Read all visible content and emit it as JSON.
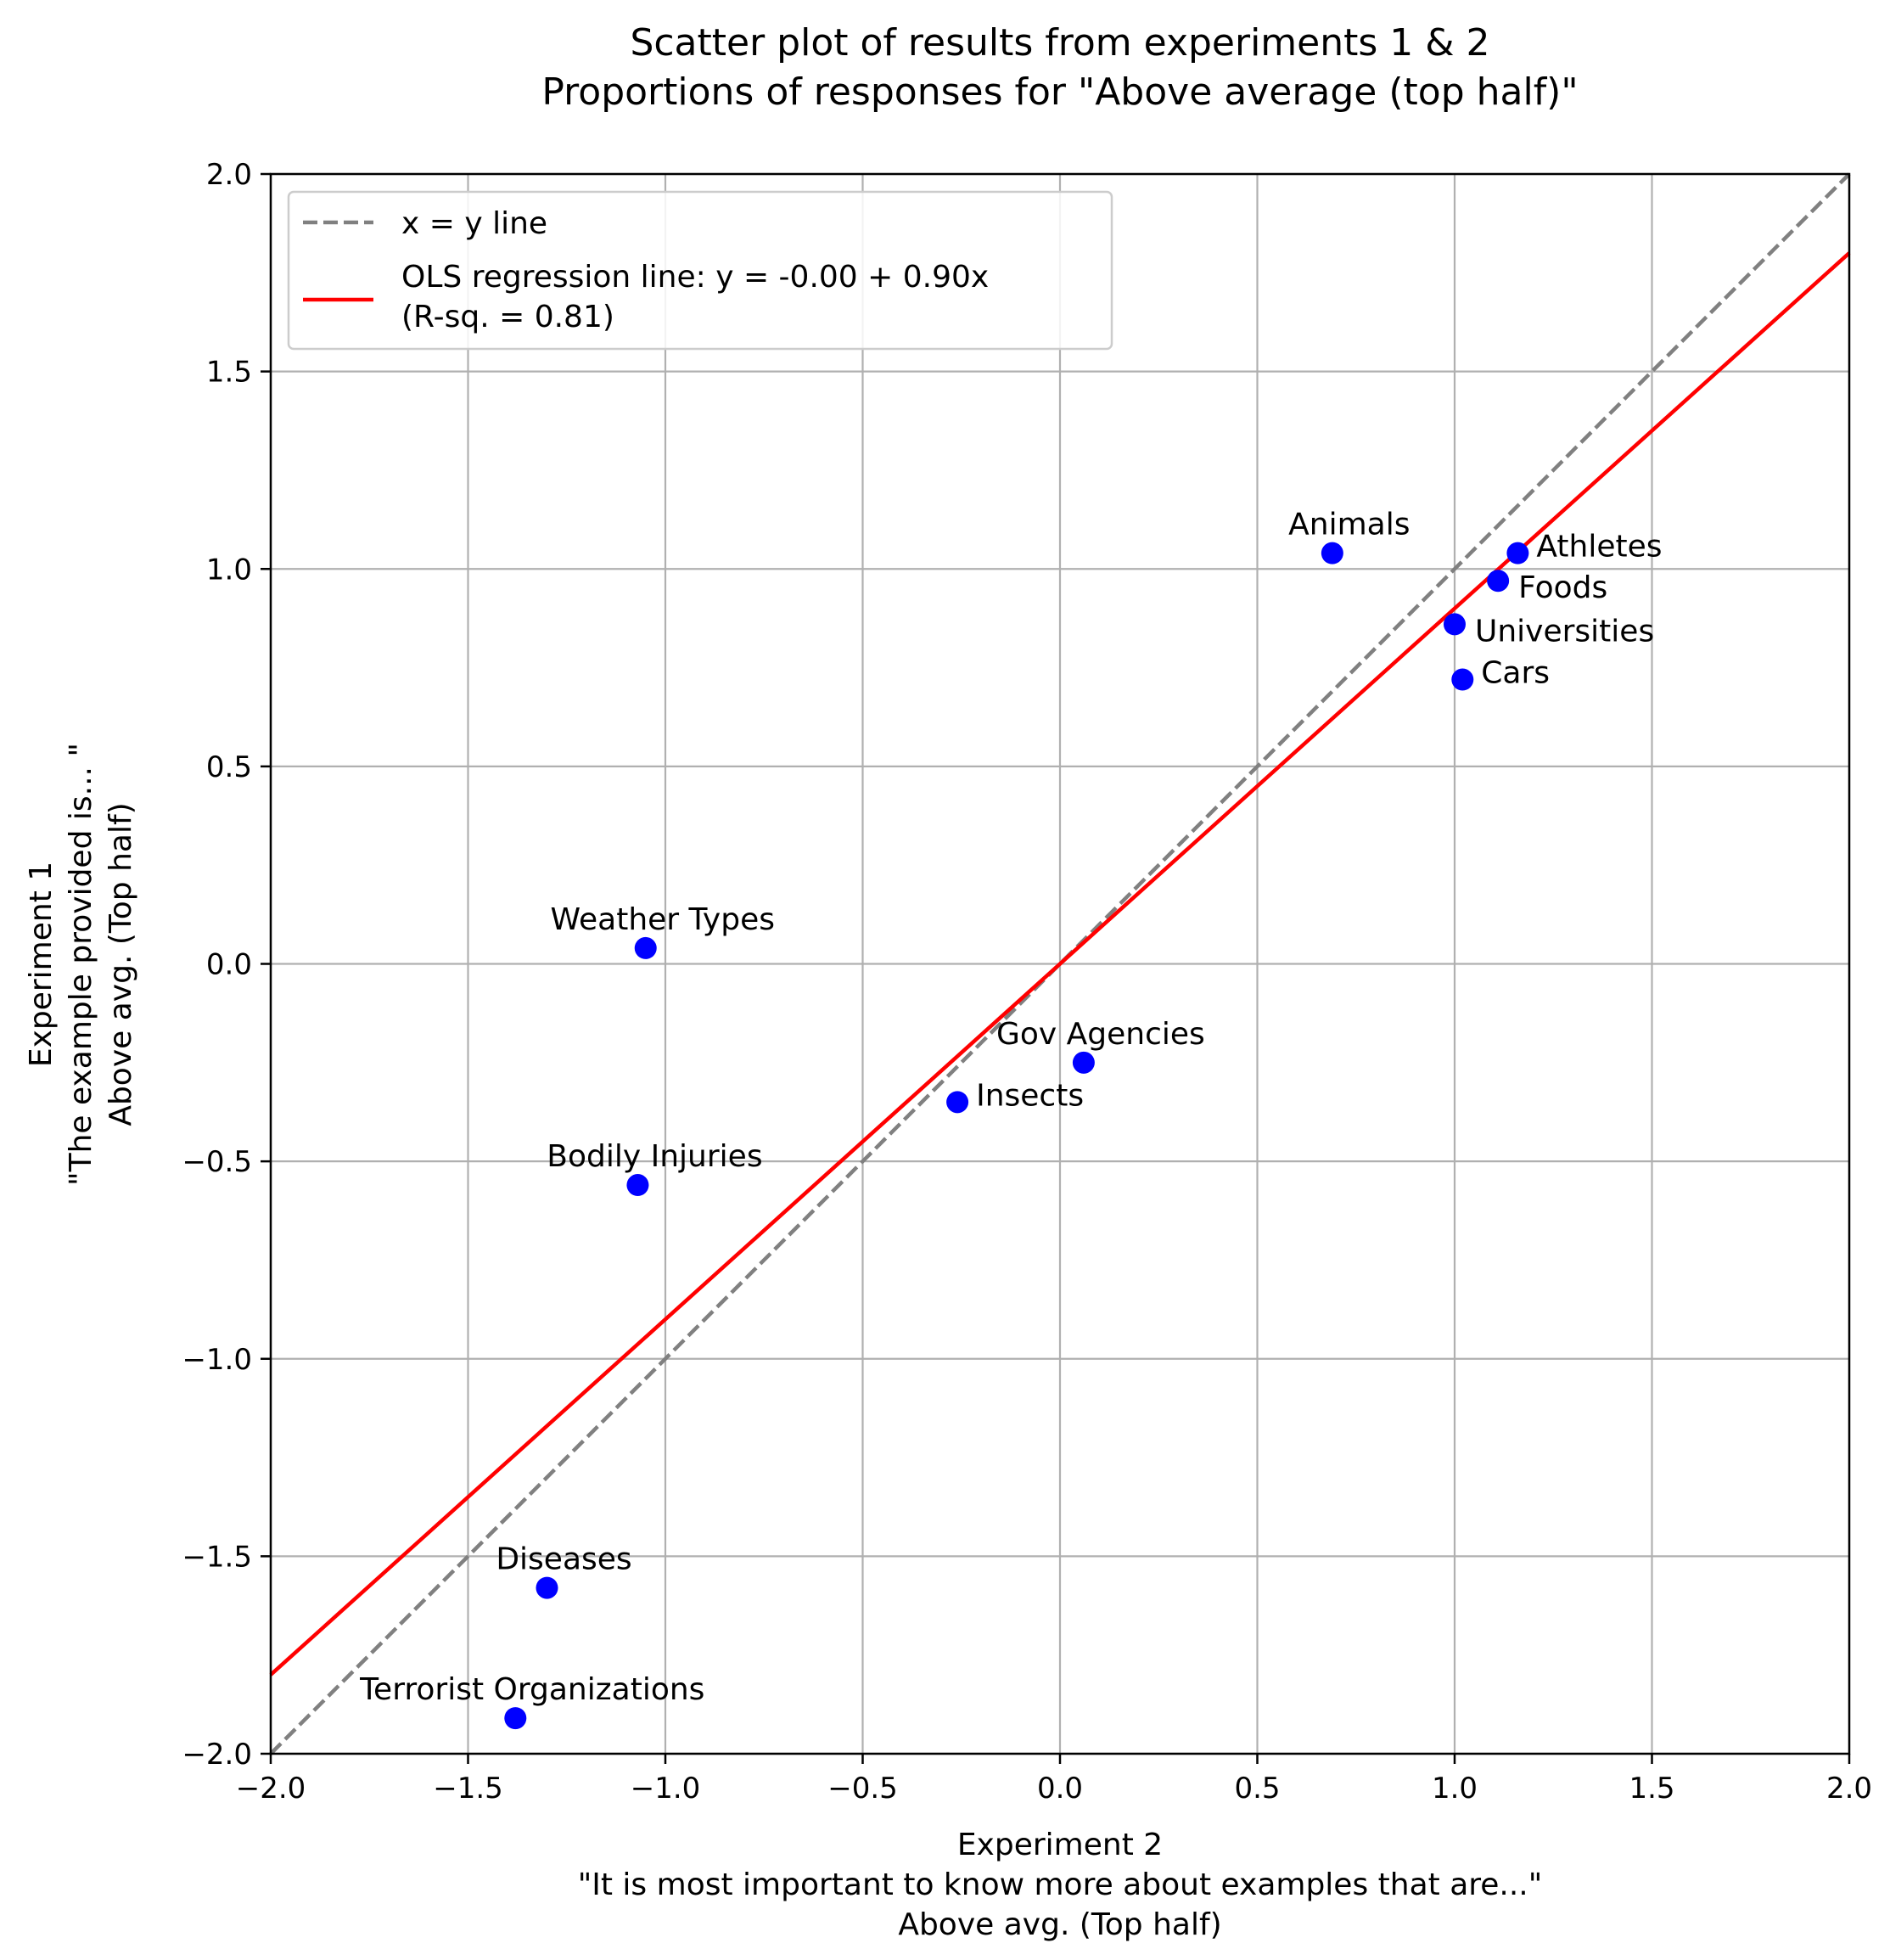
{
  "chart_data": {
    "type": "scatter",
    "title": [
      "Scatter plot of results from experiments 1 & 2",
      "Proportions of responses for \"Above average (top half)\""
    ],
    "xlabel": [
      "Experiment 2",
      "\"It is most important to know more about examples that are...\"",
      "Above avg. (Top half)"
    ],
    "ylabel": [
      "Experiment 1",
      "\"The example provided is... \"",
      "Above avg. (Top half)"
    ],
    "xlim": [
      -2.0,
      2.0
    ],
    "ylim": [
      -2.0,
      2.0
    ],
    "xticks": [
      -2.0,
      -1.5,
      -1.0,
      -0.5,
      0.0,
      0.5,
      1.0,
      1.5,
      2.0
    ],
    "yticks": [
      -2.0,
      -1.5,
      -1.0,
      -0.5,
      0.0,
      0.5,
      1.0,
      1.5,
      2.0
    ],
    "xtick_labels": [
      "−2.0",
      "−1.5",
      "−1.0",
      "−0.5",
      "0.0",
      "0.5",
      "1.0",
      "1.5",
      "2.0"
    ],
    "ytick_labels": [
      "−2.0",
      "−1.5",
      "−1.0",
      "−0.5",
      "0.0",
      "0.5",
      "1.0",
      "1.5",
      "2.0"
    ],
    "grid": true,
    "legend_position": "top-left",
    "legend": [
      {
        "label": [
          "x = y line"
        ],
        "style": "dashed",
        "color": "#808080"
      },
      {
        "label": [
          "OLS regression line: y = -0.00 + 0.90x",
          "(R-sq. = 0.81)"
        ],
        "style": "solid",
        "color": "#ff0000"
      }
    ],
    "lines": [
      {
        "kind": "identity",
        "intercept": 0.0,
        "slope": 1.0,
        "color": "#808080",
        "dash": true
      },
      {
        "kind": "ols",
        "intercept": 0.0,
        "slope": 0.9,
        "color": "#ff0000",
        "dash": false
      }
    ],
    "point_color": "#0000ff",
    "points": [
      {
        "label": "Animals",
        "x": 0.69,
        "y": 1.04,
        "anchor": "above"
      },
      {
        "label": "Athletes",
        "x": 1.16,
        "y": 1.04,
        "anchor": "right"
      },
      {
        "label": "Foods",
        "x": 1.11,
        "y": 0.97,
        "anchor": "right-below"
      },
      {
        "label": "Universities",
        "x": 1.0,
        "y": 0.86,
        "anchor": "right-below"
      },
      {
        "label": "Cars",
        "x": 1.02,
        "y": 0.72,
        "anchor": "right"
      },
      {
        "label": "Weather Types",
        "x": -1.05,
        "y": 0.04,
        "anchor": "above"
      },
      {
        "label": "Gov Agencies",
        "x": 0.06,
        "y": -0.25,
        "anchor": "above"
      },
      {
        "label": "Insects",
        "x": -0.26,
        "y": -0.35,
        "anchor": "right"
      },
      {
        "label": "Bodily Injuries",
        "x": -1.07,
        "y": -0.56,
        "anchor": "above"
      },
      {
        "label": "Diseases",
        "x": -1.3,
        "y": -1.58,
        "anchor": "above"
      },
      {
        "label": "Terrorist Organizations",
        "x": -1.38,
        "y": -1.91,
        "anchor": "above"
      }
    ]
  }
}
